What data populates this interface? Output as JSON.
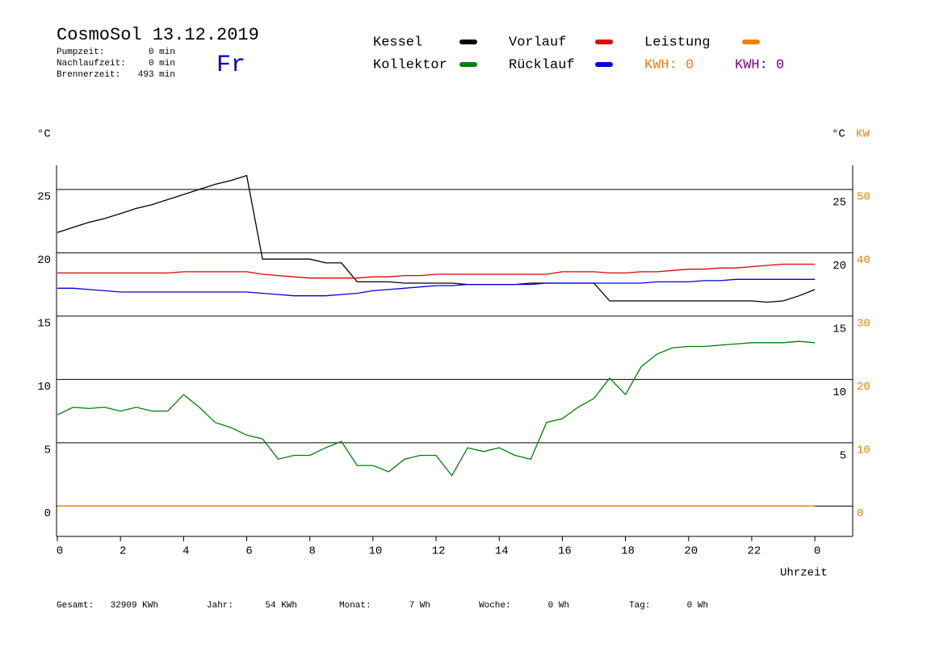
{
  "chart_data": {
    "type": "line",
    "title": "CosmoSol 13.12.2019",
    "day": "Fr",
    "stats": [
      [
        "Pumpzeit:",
        "0 min"
      ],
      [
        "Nachlaufzeit:",
        "0 min"
      ],
      [
        "Brennerzeit:",
        "493 min"
      ]
    ],
    "kwh_labels": [
      {
        "text": "KWH: 0",
        "color": "#f08000"
      },
      {
        "text": "KWH: 0",
        "color": "#800080"
      }
    ],
    "y_label": "°C",
    "y2_label": "°C",
    "y2_unit": "KW",
    "x_label": "Uhrzeit",
    "totals": [
      [
        "Gesamt:",
        "32909 KWh"
      ],
      [
        "Jahr:",
        "54 KWh"
      ],
      [
        "Monat:",
        "7 Wh"
      ],
      [
        "Woche:",
        "0 Wh"
      ],
      [
        "Tag:",
        "0 Wh"
      ]
    ],
    "x": [
      0,
      0.5,
      1,
      1.5,
      2,
      2.5,
      3,
      3.5,
      4,
      4.5,
      5,
      5.5,
      6,
      6.5,
      7,
      7.5,
      8,
      8.5,
      9,
      9.5,
      10,
      10.5,
      11,
      11.5,
      12,
      12.5,
      13,
      13.5,
      14,
      14.5,
      15,
      15.5,
      16,
      16.5,
      17,
      17.5,
      18,
      18.5,
      19,
      19.5,
      20,
      20.5,
      21,
      21.5,
      22,
      22.5,
      23,
      23.5,
      24
    ],
    "xlim": [
      0,
      25.2
    ],
    "xticks": [
      0,
      2,
      4,
      6,
      8,
      10,
      12,
      14,
      16,
      18,
      20,
      22,
      {
        "value": 24,
        "label": "0"
      }
    ],
    "ylim": [
      -2.4,
      26.9
    ],
    "yticks": [
      0,
      5,
      10,
      15,
      20,
      25
    ],
    "y2lim": [
      -4.8,
      53.8
    ],
    "y2ticks": [
      0,
      10,
      20,
      30,
      40,
      50
    ],
    "grid": true,
    "series": [
      {
        "name": "Kessel",
        "color": "#000000",
        "values": [
          21.6,
          22.0,
          22.4,
          22.7,
          23.1,
          23.5,
          23.8,
          24.2,
          24.6,
          25.0,
          25.4,
          25.7,
          26.1,
          19.5,
          19.5,
          19.5,
          19.5,
          19.2,
          19.2,
          17.7,
          17.7,
          17.7,
          17.6,
          17.6,
          17.6,
          17.6,
          17.5,
          17.5,
          17.5,
          17.5,
          17.6,
          17.6,
          17.6,
          17.6,
          17.6,
          16.2,
          16.2,
          16.2,
          16.2,
          16.2,
          16.2,
          16.2,
          16.2,
          16.2,
          16.2,
          16.1,
          16.2,
          16.6,
          17.1
        ]
      },
      {
        "name": "Kollektor",
        "color": "#008000",
        "values": [
          7.2,
          7.8,
          7.7,
          7.8,
          7.5,
          7.8,
          7.5,
          7.5,
          8.8,
          7.8,
          6.6,
          6.2,
          5.6,
          5.3,
          3.7,
          4.0,
          4.0,
          4.6,
          5.1,
          3.2,
          3.2,
          2.7,
          3.7,
          4.0,
          4.0,
          2.4,
          4.6,
          4.3,
          4.6,
          4.0,
          3.7,
          6.6,
          6.9,
          7.8,
          8.5,
          10.1,
          8.8,
          11.0,
          12.0,
          12.5,
          12.6,
          12.6,
          12.7,
          12.8,
          12.9,
          12.9,
          12.9,
          13.0,
          12.9
        ]
      },
      {
        "name": "Vorlauf",
        "color": "#e00000",
        "values": [
          18.4,
          18.4,
          18.4,
          18.4,
          18.4,
          18.4,
          18.4,
          18.4,
          18.5,
          18.5,
          18.5,
          18.5,
          18.5,
          18.3,
          18.2,
          18.1,
          18.0,
          18.0,
          18.0,
          18.0,
          18.1,
          18.1,
          18.2,
          18.2,
          18.3,
          18.3,
          18.3,
          18.3,
          18.3,
          18.3,
          18.3,
          18.3,
          18.5,
          18.5,
          18.5,
          18.4,
          18.4,
          18.5,
          18.5,
          18.6,
          18.7,
          18.7,
          18.8,
          18.8,
          18.9,
          19.0,
          19.1,
          19.1,
          19.1
        ]
      },
      {
        "name": "Rücklauf",
        "color": "#0000e0",
        "values": [
          17.2,
          17.2,
          17.1,
          17.0,
          16.9,
          16.9,
          16.9,
          16.9,
          16.9,
          16.9,
          16.9,
          16.9,
          16.9,
          16.8,
          16.7,
          16.6,
          16.6,
          16.6,
          16.7,
          16.8,
          17.0,
          17.1,
          17.2,
          17.3,
          17.4,
          17.4,
          17.5,
          17.5,
          17.5,
          17.5,
          17.5,
          17.6,
          17.6,
          17.6,
          17.6,
          17.6,
          17.6,
          17.6,
          17.7,
          17.7,
          17.7,
          17.8,
          17.8,
          17.9,
          17.9,
          17.9,
          17.9,
          17.9,
          17.9
        ]
      },
      {
        "name": "Leistung",
        "color": "#f08000",
        "axis": "y2",
        "values": [
          0,
          0,
          0,
          0,
          0,
          0,
          0,
          0,
          0,
          0,
          0,
          0,
          0,
          0,
          0,
          0,
          0,
          0,
          0,
          0,
          0,
          0,
          0,
          0,
          0,
          0,
          0,
          0,
          0,
          0,
          0,
          0,
          0,
          0,
          0,
          0,
          0,
          0,
          0,
          0,
          0,
          0,
          0,
          0,
          0,
          0,
          0,
          0,
          0
        ]
      }
    ]
  }
}
